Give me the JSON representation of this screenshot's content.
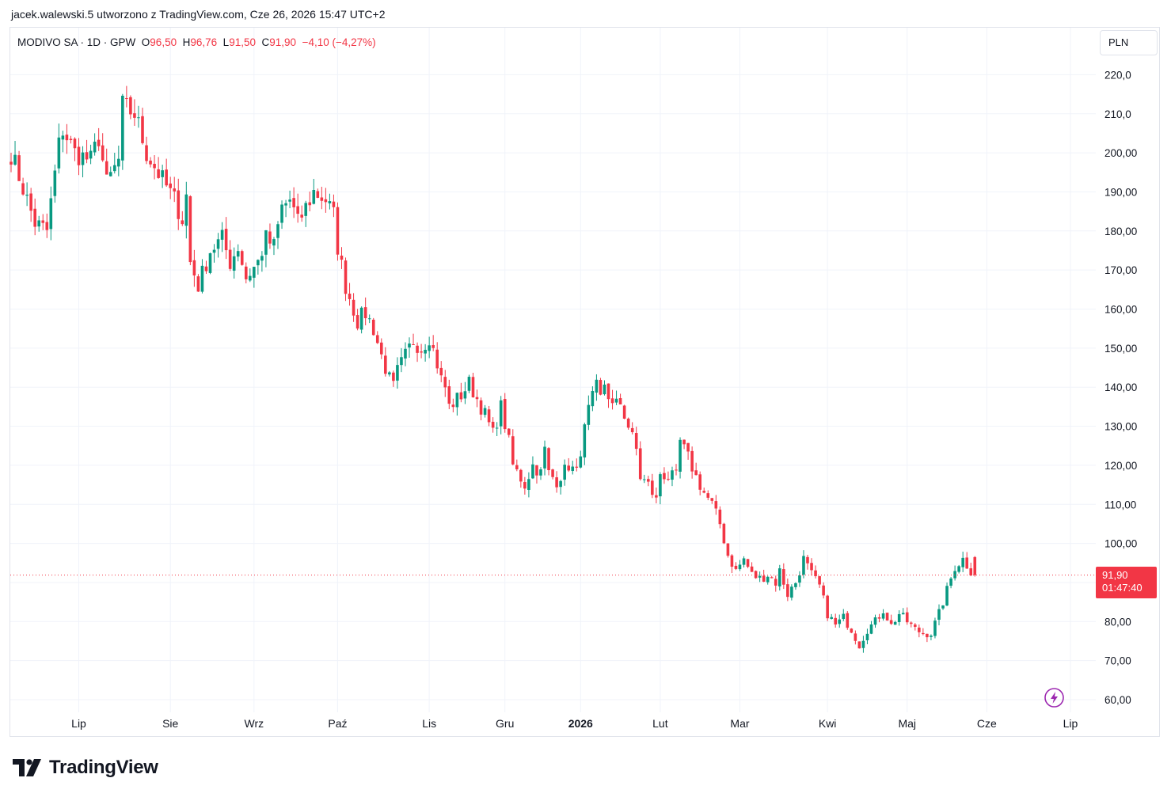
{
  "header": {
    "text": "jacek.walewski.5 utworzono z TradingView.com, Cze 26, 2026 15:47 UTC+2"
  },
  "legend": {
    "symbol": "MODIVO SA · 1D · GPW",
    "open_label": "O",
    "open_value": "96,50",
    "high_label": "H",
    "high_value": "96,76",
    "low_label": "L",
    "low_value": "91,50",
    "close_label": "C",
    "close_value": "91,90",
    "change": "−4,10 (−4,27%)"
  },
  "currency": "PLN",
  "last_price": {
    "price": "91,90",
    "countdown": "01:47:40"
  },
  "branding": {
    "logo_text": "TradingView"
  },
  "colors": {
    "up": "#089981",
    "down": "#f23645",
    "grid": "#f0f3fa",
    "text": "#131722",
    "accent_icon": "#9c27b0"
  },
  "chart_data": {
    "type": "candlestick",
    "symbol": "MODIVO SA",
    "interval": "1D",
    "exchange": "GPW",
    "currency": "PLN",
    "ylim": [
      57,
      225
    ],
    "y_ticks": [
      {
        "value": 60,
        "label": "60,00"
      },
      {
        "value": 70,
        "label": "70,00"
      },
      {
        "value": 80,
        "label": "80,00"
      },
      {
        "value": 90,
        "label": ""
      },
      {
        "value": 100,
        "label": "100,00"
      },
      {
        "value": 110,
        "label": "110,00"
      },
      {
        "value": 120,
        "label": "120,00"
      },
      {
        "value": 130,
        "label": "130,00"
      },
      {
        "value": 140,
        "label": "140,00"
      },
      {
        "value": 150,
        "label": "150,00"
      },
      {
        "value": 160,
        "label": "160,00"
      },
      {
        "value": 170,
        "label": "170,00"
      },
      {
        "value": 180,
        "label": "180,00"
      },
      {
        "value": 190,
        "label": "190,00"
      },
      {
        "value": 200,
        "label": "200,00"
      },
      {
        "value": 210,
        "label": "210,0"
      },
      {
        "value": 220,
        "label": "220,0"
      }
    ],
    "x_ticks": [
      {
        "label": "Lip",
        "index": 17,
        "bold": false
      },
      {
        "label": "Sie",
        "index": 40,
        "bold": false
      },
      {
        "label": "Wrz",
        "index": 61,
        "bold": false
      },
      {
        "label": "Paź",
        "index": 82,
        "bold": false
      },
      {
        "label": "Lis",
        "index": 105,
        "bold": false
      },
      {
        "label": "Gru",
        "index": 124,
        "bold": false
      },
      {
        "label": "2026",
        "index": 143,
        "bold": true
      },
      {
        "label": "Lut",
        "index": 163,
        "bold": false
      },
      {
        "label": "Mar",
        "index": 183,
        "bold": false
      },
      {
        "label": "Kwi",
        "index": 205,
        "bold": false
      },
      {
        "label": "Maj",
        "index": 225,
        "bold": false
      },
      {
        "label": "Cze",
        "index": 245,
        "bold": false
      },
      {
        "label": "Lip",
        "index": 266,
        "bold": false
      }
    ],
    "last_price": 91.9,
    "total_slots": 271,
    "anchors": [
      [
        0,
        200
      ],
      [
        5,
        185
      ],
      [
        6,
        182
      ],
      [
        9,
        180
      ],
      [
        12,
        202
      ],
      [
        13,
        206
      ],
      [
        16,
        200
      ],
      [
        20,
        198
      ],
      [
        22,
        204
      ],
      [
        24,
        192
      ],
      [
        27,
        198
      ],
      [
        28,
        212
      ],
      [
        31,
        210
      ],
      [
        32,
        207
      ],
      [
        34,
        200
      ],
      [
        38,
        193
      ],
      [
        41,
        188
      ],
      [
        43,
        183
      ],
      [
        44,
        189
      ],
      [
        45,
        172
      ],
      [
        47,
        166
      ],
      [
        50,
        175
      ],
      [
        53,
        178
      ],
      [
        55,
        172
      ],
      [
        57,
        176
      ],
      [
        59,
        168
      ],
      [
        62,
        172
      ],
      [
        64,
        178
      ],
      [
        66,
        176
      ],
      [
        68,
        186
      ],
      [
        70,
        188
      ],
      [
        72,
        182
      ],
      [
        74,
        186
      ],
      [
        76,
        190
      ],
      [
        79,
        188
      ],
      [
        81,
        184
      ],
      [
        82,
        176
      ],
      [
        84,
        166
      ],
      [
        87,
        157
      ],
      [
        89,
        159
      ],
      [
        91,
        155
      ],
      [
        93,
        148
      ],
      [
        95,
        142
      ],
      [
        96,
        140
      ],
      [
        97,
        144
      ],
      [
        99,
        148
      ],
      [
        101,
        152
      ],
      [
        103,
        150
      ],
      [
        105,
        153
      ],
      [
        107,
        146
      ],
      [
        108,
        142
      ],
      [
        109,
        140
      ],
      [
        110,
        135
      ],
      [
        113,
        138
      ],
      [
        115,
        141
      ],
      [
        117,
        137
      ],
      [
        119,
        133
      ],
      [
        121,
        128
      ],
      [
        123,
        135
      ],
      [
        125,
        126
      ],
      [
        126,
        120
      ],
      [
        129,
        115
      ],
      [
        131,
        120
      ],
      [
        133,
        118
      ],
      [
        134,
        124
      ],
      [
        135,
        118
      ],
      [
        137,
        116
      ],
      [
        140,
        120
      ],
      [
        142,
        118
      ],
      [
        143,
        124
      ],
      [
        145,
        134
      ],
      [
        147,
        140
      ],
      [
        148,
        137
      ],
      [
        149,
        141
      ],
      [
        151,
        135
      ],
      [
        153,
        136
      ],
      [
        155,
        130
      ],
      [
        157,
        124
      ],
      [
        158,
        117
      ],
      [
        160,
        115
      ],
      [
        162,
        111
      ],
      [
        163,
        118
      ],
      [
        165,
        117
      ],
      [
        167,
        117
      ],
      [
        168,
        126
      ],
      [
        170,
        122
      ],
      [
        172,
        117
      ],
      [
        174,
        113
      ],
      [
        176,
        110
      ],
      [
        178,
        105
      ],
      [
        180,
        97
      ],
      [
        182,
        93
      ],
      [
        184,
        96
      ],
      [
        186,
        92
      ],
      [
        188,
        91
      ],
      [
        190,
        92
      ],
      [
        192,
        90
      ],
      [
        193,
        93
      ],
      [
        195,
        87
      ],
      [
        197,
        90
      ],
      [
        199,
        96
      ],
      [
        201,
        92
      ],
      [
        203,
        89
      ],
      [
        205,
        82
      ],
      [
        207,
        79
      ],
      [
        209,
        81
      ],
      [
        211,
        78
      ],
      [
        213,
        74
      ],
      [
        215,
        78
      ],
      [
        217,
        80
      ],
      [
        219,
        83
      ],
      [
        221,
        79
      ],
      [
        223,
        82
      ],
      [
        225,
        80
      ],
      [
        227,
        78
      ],
      [
        229,
        77
      ],
      [
        231,
        77
      ],
      [
        233,
        82
      ],
      [
        235,
        88
      ],
      [
        237,
        94
      ],
      [
        239,
        96
      ],
      [
        241,
        93
      ],
      [
        242,
        91.9
      ]
    ],
    "last_candle": {
      "open": 96.5,
      "high": 96.76,
      "low": 91.5,
      "close": 91.9
    }
  }
}
